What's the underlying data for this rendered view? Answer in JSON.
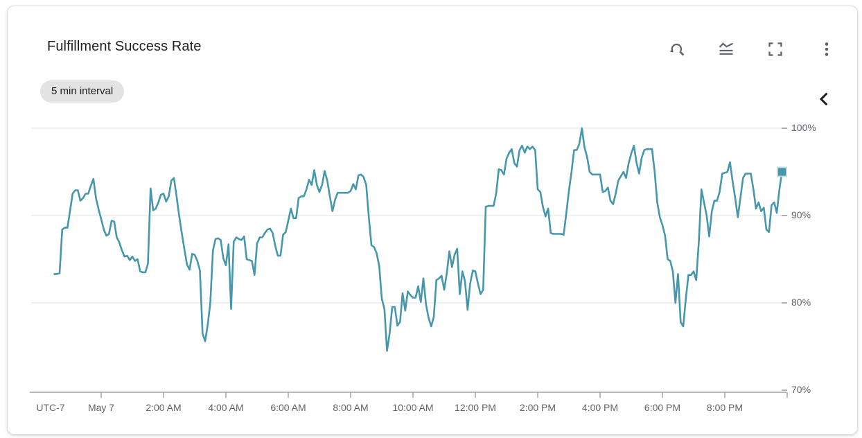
{
  "card": {
    "title": "Fulfillment Success Rate",
    "interval_badge": "5 min interval",
    "toolbar_icons": [
      "zoom-reset",
      "chart-display-options",
      "fullscreen",
      "more-options"
    ],
    "collapse_icon": "chevron-left"
  },
  "chart_data": {
    "type": "line",
    "title": "Fulfillment Success Rate",
    "unit": "%",
    "series_name": "fulfillment success rate",
    "series_color": "#4697ab",
    "grid": "horizontal",
    "legend_position": "none",
    "end_marker": "square",
    "interval_minutes": 5,
    "start_offset_hours": -1.5,
    "x_axis": {
      "timezone_label": "UTC-7",
      "tick_labels": [
        {
          "label": "May 7",
          "hour": 0
        },
        {
          "label": "2:00 AM",
          "hour": 2
        },
        {
          "label": "4:00 AM",
          "hour": 4
        },
        {
          "label": "6:00 AM",
          "hour": 6
        },
        {
          "label": "8:00 AM",
          "hour": 8
        },
        {
          "label": "10:00 AM",
          "hour": 10
        },
        {
          "label": "12:00 PM",
          "hour": 12
        },
        {
          "label": "2:00 PM",
          "hour": 14
        },
        {
          "label": "4:00 PM",
          "hour": 16
        },
        {
          "label": "6:00 PM",
          "hour": 18
        },
        {
          "label": "8:00 PM",
          "hour": 20
        }
      ],
      "end_tick_hour": 22
    },
    "y_axis": {
      "tick_labels": [
        "100%",
        "90%",
        "80%",
        "70%"
      ],
      "tick_values": [
        100,
        90,
        80,
        70
      ],
      "range": [
        70,
        100
      ]
    },
    "values": [
      83.3,
      83.3,
      83.4,
      88.4,
      88.6,
      88.6,
      90.5,
      92.5,
      92.9,
      92.9,
      91.7,
      92.0,
      92.5,
      92.5,
      93.4,
      94.2,
      92.0,
      90.7,
      89.6,
      88.4,
      87.7,
      87.9,
      89.4,
      89.3,
      87.5,
      86.9,
      86.0,
      85.3,
      85.4,
      84.9,
      85.3,
      84.8,
      85.0,
      83.6,
      83.5,
      83.5,
      84.5,
      93.1,
      90.6,
      90.8,
      91.5,
      92.4,
      92.5,
      91.6,
      92.2,
      94.0,
      94.3,
      92.2,
      90.0,
      88.0,
      86.2,
      84.4,
      83.8,
      85.6,
      85.5,
      84.8,
      83.7,
      76.5,
      75.6,
      77.5,
      80.0,
      86.0,
      87.3,
      87.4,
      87.2,
      85.1,
      84.3,
      86.7,
      79.3,
      87.0,
      87.5,
      87.3,
      87.2,
      87.6,
      85.0,
      84.9,
      84.8,
      83.2,
      86.8,
      87.5,
      87.5,
      88.0,
      88.4,
      88.5,
      88.0,
      86.5,
      85.4,
      85.4,
      87.8,
      88.1,
      89.4,
      90.8,
      89.7,
      89.7,
      92.0,
      92.2,
      92.2,
      93.0,
      94.1,
      93.5,
      95.2,
      93.5,
      92.7,
      93.5,
      95.1,
      94.0,
      92.2,
      90.5,
      91.8,
      92.6,
      92.6,
      92.6,
      92.6,
      92.6,
      92.8,
      93.6,
      93.0,
      94.6,
      94.7,
      94.4,
      93.5,
      89.8,
      86.6,
      86.4,
      85.7,
      84.2,
      80.5,
      79.3,
      74.5,
      76.5,
      79.5,
      79.5,
      77.4,
      77.8,
      81.1,
      79.1,
      81.3,
      80.9,
      80.6,
      80.6,
      81.9,
      80.1,
      82.8,
      79.8,
      78.3,
      77.3,
      78.4,
      82.6,
      82.8,
      83.1,
      81.5,
      83.4,
      85.9,
      84.1,
      85.5,
      86.2,
      81.0,
      83.6,
      82.5,
      79.2,
      82.2,
      83.7,
      83.6,
      82.2,
      81.0,
      81.5,
      91.0,
      91.1,
      91.1,
      91.1,
      92.5,
      95.3,
      95.2,
      94.7,
      96.5,
      97.2,
      97.6,
      96.0,
      95.6,
      97.5,
      98.0,
      97.2,
      97.9,
      97.6,
      97.9,
      97.5,
      93.0,
      92.7,
      91.0,
      89.9,
      90.8,
      88.0,
      87.9,
      87.9,
      87.9,
      87.9,
      87.8,
      90.3,
      92.8,
      95.0,
      97.5,
      97.5,
      98.2,
      100.0,
      97.8,
      96.7,
      95.0,
      94.7,
      94.7,
      94.7,
      94.7,
      92.7,
      92.8,
      93.2,
      91.7,
      91.3,
      92.5,
      94.0,
      94.5,
      95.0,
      94.3,
      96.0,
      97.1,
      98.0,
      96.1,
      94.8,
      96.6,
      97.5,
      97.6,
      97.6,
      97.6,
      95.0,
      91.5,
      89.8,
      88.9,
      87.7,
      85.0,
      84.8,
      83.6,
      80.0,
      83.3,
      77.8,
      77.3,
      80.5,
      83.2,
      83.2,
      83.6,
      82.6,
      87.0,
      93.0,
      91.5,
      90.0,
      87.6,
      90.5,
      91.7,
      91.7,
      92.7,
      94.8,
      94.9,
      95.0,
      96.1,
      93.9,
      92.0,
      89.8,
      92.0,
      94.3,
      94.8,
      94.8,
      94.8,
      93.0,
      90.8,
      91.5,
      90.5,
      90.9,
      88.4,
      88.1,
      91.2,
      91.5,
      90.3,
      93.0,
      95.0
    ]
  }
}
